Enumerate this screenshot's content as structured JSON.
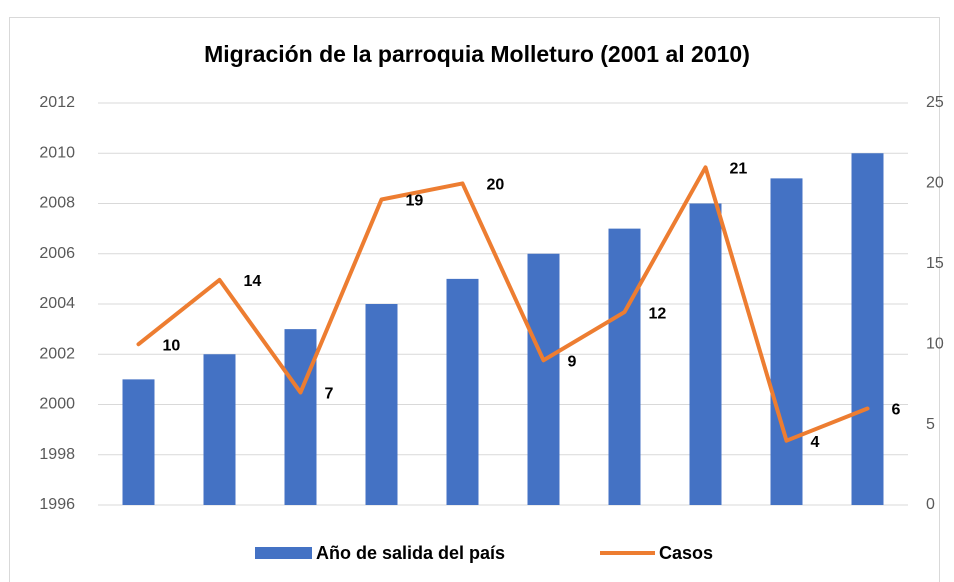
{
  "chart_data": {
    "type": "bar_line",
    "title": "Migración de la parroquia Molleturo (2001 al 2010)",
    "categories": [
      null,
      null,
      null,
      null,
      null,
      null,
      null,
      null,
      null,
      null
    ],
    "series": [
      {
        "name": "Año de salida del país",
        "type": "bar",
        "color": "#4472c4",
        "values": [
          2001,
          2002,
          2003,
          2004,
          2005,
          2006,
          2007,
          2008,
          2009,
          2010
        ]
      },
      {
        "name": "Casos",
        "type": "line",
        "axis": "y2",
        "color": "#ed7d31",
        "values": [
          10,
          14,
          7,
          19,
          20,
          9,
          12,
          21,
          4,
          6
        ],
        "data_labels": true
      }
    ],
    "ylim": [
      1996,
      2012
    ],
    "yticks": [
      1996,
      1998,
      2000,
      2002,
      2004,
      2006,
      2008,
      2010,
      2012
    ],
    "y2lim": [
      0,
      25
    ],
    "y2ticks": [
      0,
      5,
      10,
      15,
      20,
      25
    ],
    "grid": true,
    "legend": "bottom"
  }
}
